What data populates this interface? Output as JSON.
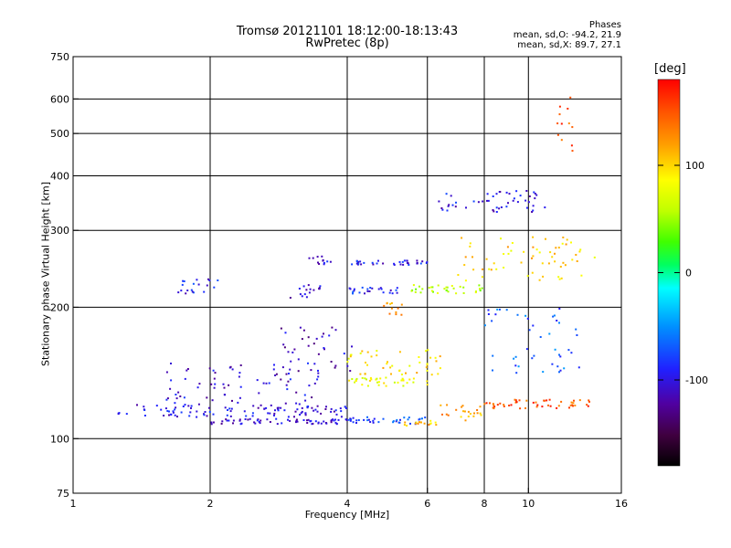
{
  "chart_data": {
    "type": "scatter",
    "title": "Tromsø 20121101 18:12:00-18:13:43",
    "subtitle": "RwPretec (8p)",
    "stats": {
      "heading": "Phases",
      "o_mode": "mean, sd,O: -94.2, 21.9",
      "x_mode": "mean, sd,X: 89.7, 27.1"
    },
    "xlabel": "Frequency [MHz]",
    "ylabel": "Stationary phase Virtual Height [km]",
    "x_scale": "log",
    "y_scale": "log",
    "xlim": [
      1,
      16
    ],
    "ylim": [
      75,
      750
    ],
    "x_ticks": [
      1,
      2,
      4,
      6,
      8,
      10,
      16
    ],
    "y_ticks": [
      75,
      100,
      200,
      300,
      400,
      500,
      600,
      750
    ],
    "x_gridlines": [
      2,
      4,
      6,
      8,
      10
    ],
    "y_gridlines": [
      100,
      200,
      300,
      400,
      500,
      600
    ],
    "grid": true,
    "colorbar": {
      "label": "[deg]",
      "range": [
        -180,
        180
      ],
      "ticks": [
        -100,
        0,
        100
      ],
      "colors": [
        "#000000",
        "#400040",
        "#5000a0",
        "#2020ff",
        "#0090ff",
        "#00ffff",
        "#00ff60",
        "#40ff00",
        "#c0ff00",
        "#ffff00",
        "#ffa000",
        "#ff5000",
        "#ff0000"
      ]
    },
    "traces": [
      {
        "name": "",
        "freq_range": [
          1.25,
          4.0
        ],
        "height_range": [
          112,
          120
        ],
        "phase": -100
      },
      {
        "name": "",
        "freq_range": [
          1.6,
          3.5
        ],
        "height_range": [
          120,
          150
        ],
        "phase": -105
      },
      {
        "name": "",
        "freq_range": [
          2.0,
          4.0
        ],
        "height_range": [
          108,
          111
        ],
        "phase": -110
      },
      {
        "name": "",
        "freq_range": [
          2.8,
          4.2
        ],
        "height_range": [
          140,
          185
        ],
        "phase": -110
      },
      {
        "name": "",
        "freq_range": [
          4.0,
          6.0
        ],
        "height_range": [
          108,
          112
        ],
        "phase": -80
      },
      {
        "name": "",
        "freq_range": [
          5.3,
          6.3
        ],
        "height_range": [
          107,
          110
        ],
        "phase": 110
      },
      {
        "name": "",
        "freq_range": [
          6.3,
          8.0
        ],
        "height_range": [
          110,
          120
        ],
        "phase": 120
      },
      {
        "name": "",
        "freq_range": [
          8.0,
          14.0
        ],
        "height_range": [
          117,
          123
        ],
        "phase": 150
      },
      {
        "name": "",
        "freq_range": [
          4.0,
          6.5
        ],
        "height_range": [
          140,
          160
        ],
        "phase": 95
      },
      {
        "name": "",
        "freq_range": [
          4.0,
          6.0
        ],
        "height_range": [
          132,
          138
        ],
        "phase": 80
      },
      {
        "name": "",
        "freq_range": [
          3.0,
          3.6
        ],
        "height_range": [
          210,
          225
        ],
        "phase": -110
      },
      {
        "name": "",
        "freq_range": [
          3.3,
          3.7
        ],
        "height_range": [
          250,
          262
        ],
        "phase": -105
      },
      {
        "name": "",
        "freq_range": [
          4.0,
          6.0
        ],
        "height_range": [
          250,
          256
        ],
        "phase": -95
      },
      {
        "name": "",
        "freq_range": [
          4.0,
          5.2
        ],
        "height_range": [
          215,
          222
        ],
        "phase": -90
      },
      {
        "name": "",
        "freq_range": [
          5.5,
          8.0
        ],
        "height_range": [
          215,
          225
        ],
        "phase": 60
      },
      {
        "name": "",
        "freq_range": [
          6.3,
          11.0
        ],
        "height_range": [
          330,
          370
        ],
        "phase": -100
      },
      {
        "name": "",
        "freq_range": [
          7.0,
          14.0
        ],
        "height_range": [
          230,
          290
        ],
        "phase": 100
      },
      {
        "name": "",
        "freq_range": [
          1.7,
          2.1
        ],
        "height_range": [
          215,
          232
        ],
        "phase": -95
      },
      {
        "name": "",
        "freq_range": [
          4.8,
          5.3
        ],
        "height_range": [
          192,
          205
        ],
        "phase": 120
      },
      {
        "name": "",
        "freq_range": [
          8.0,
          13.0
        ],
        "height_range": [
          140,
          200
        ],
        "phase": -70
      },
      {
        "name": "",
        "freq_range": [
          11.5,
          12.5
        ],
        "height_range": [
          440,
          610
        ],
        "phase": 150
      }
    ]
  }
}
